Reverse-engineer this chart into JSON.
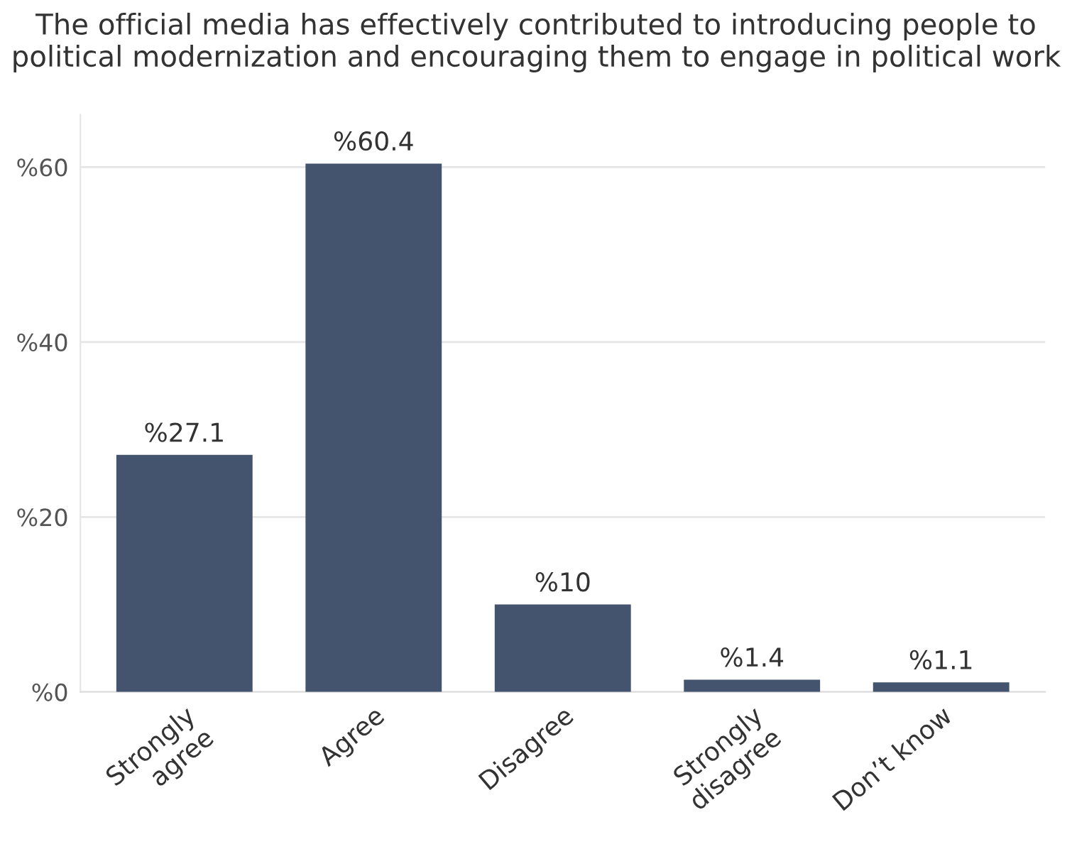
{
  "chart_data": {
    "type": "bar",
    "title": "The official media has effectively contributed to introducing people to political modernization and encouraging them to engage in political work",
    "categories": [
      "Strongly\nagree",
      "Agree",
      "Disagree",
      "Strongly\ndisagree",
      "Don’t know"
    ],
    "values": [
      27.1,
      60.4,
      10,
      1.4,
      1.1
    ],
    "value_labels": [
      "%27.1",
      "%60.4",
      "%10",
      "%1.4",
      "%1.1"
    ],
    "color": "#44546f",
    "ylim": [
      0,
      66
    ],
    "yticks": [
      {
        "value": 0,
        "label": "%0"
      },
      {
        "value": 20,
        "label": "%20"
      },
      {
        "value": 40,
        "label": "%40"
      },
      {
        "value": 60,
        "label": "%60"
      }
    ],
    "grid": "y"
  }
}
